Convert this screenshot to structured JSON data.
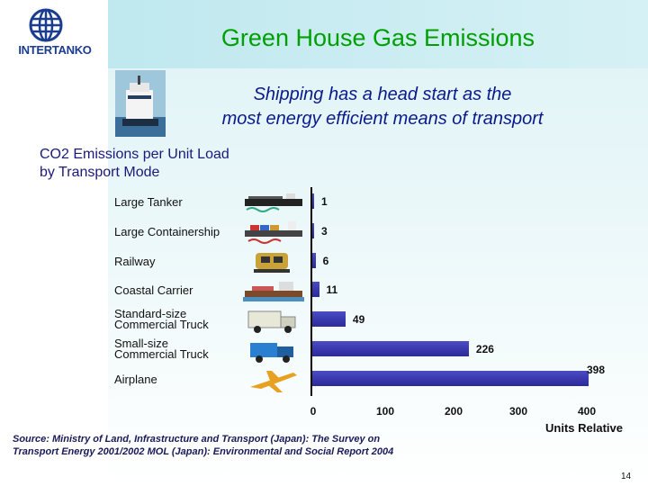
{
  "header": {
    "logo_text": "INTERTANKO",
    "title": "Green House Gas Emissions",
    "subtitle_line1": "Shipping has a head start as the",
    "subtitle_line2": "most energy efficient means of transport"
  },
  "chart_data": {
    "type": "bar",
    "orientation": "horizontal",
    "title_line1": "CO2 Emissions per Unit Load",
    "title_line2": "by Transport Mode",
    "categories": [
      "Large Tanker",
      "Large Containership",
      "Railway",
      "Coastal Carrier",
      "Standard-size\nCommercial Truck",
      "Small-size\nCommercial Truck",
      "Airplane"
    ],
    "values": [
      1,
      3,
      6,
      11,
      49,
      226,
      398
    ],
    "value_labels": [
      "1",
      "3",
      "6",
      "11",
      "49",
      "226",
      "398"
    ],
    "x_ticks": [
      "0",
      "100",
      "200",
      "300",
      "400"
    ],
    "xlim": [
      0,
      400
    ],
    "xlabel": "Units Relative",
    "icons": [
      "tanker-icon",
      "containership-icon",
      "locomotive-icon",
      "coastal-carrier-icon",
      "truck-icon",
      "small-truck-icon",
      "airplane-icon"
    ],
    "bar_color": "#2a2a9a"
  },
  "footer": {
    "source": "Source: Ministry of Land, Infrastructure and Transport (Japan): The Survey on Transport Energy 2001/2002 MOL (Japan): Environmental and Social Report 2004",
    "page_number": "14"
  }
}
